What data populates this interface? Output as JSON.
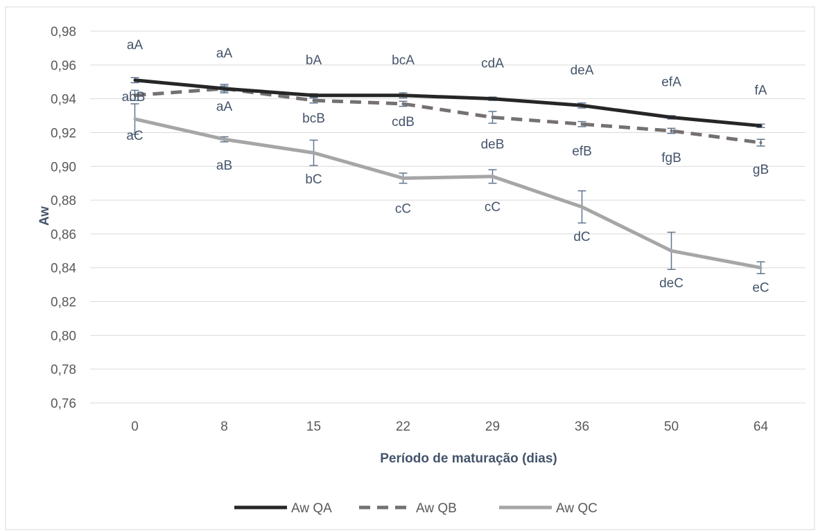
{
  "chart_data": {
    "type": "line",
    "xlabel": "Período de maturação (dias)",
    "ylabel": "Aw",
    "categories": [
      "0",
      "8",
      "15",
      "22",
      "29",
      "36",
      "50",
      "64"
    ],
    "ylim": [
      0.76,
      0.98
    ],
    "y_ticks": [
      "0,76",
      "0,78",
      "0,80",
      "0,82",
      "0,84",
      "0,86",
      "0,88",
      "0,90",
      "0,92",
      "0,94",
      "0,96",
      "0,98"
    ],
    "grid": "horizontal",
    "legend_position": "bottom",
    "series": [
      {
        "name": "Aw QA",
        "color": "#262626",
        "style": "solid",
        "values": [
          0.951,
          0.946,
          0.942,
          0.942,
          0.94,
          0.936,
          0.929,
          0.924
        ],
        "errors": [
          0.0015,
          0.0015,
          0.001,
          0.0015,
          0.001,
          0.0015,
          0.001,
          0.001
        ],
        "labels": [
          "aA",
          "aA",
          "bA",
          "bcA",
          "cdA",
          "deA",
          "efA",
          "fA"
        ]
      },
      {
        "name": "Aw QB",
        "color": "#767171",
        "style": "dashed",
        "values": [
          0.942,
          0.946,
          0.939,
          0.937,
          0.929,
          0.925,
          0.921,
          0.914
        ],
        "errors": [
          0.003,
          0.0025,
          0.0015,
          0.0015,
          0.0035,
          0.0015,
          0.0015,
          0.002
        ],
        "labels": [
          "abB",
          "aA",
          "bcB",
          "cdB",
          "deB",
          "efB",
          "fgB",
          "gB"
        ]
      },
      {
        "name": "Aw QC",
        "color": "#a6a6a6",
        "style": "solid",
        "values": [
          0.928,
          0.916,
          0.908,
          0.893,
          0.894,
          0.876,
          0.85,
          0.84
        ],
        "errors": [
          0.009,
          0.0015,
          0.0075,
          0.003,
          0.004,
          0.0095,
          0.011,
          0.0035
        ],
        "labels": [
          "aC",
          "aB",
          "bC",
          "cC",
          "cC",
          "dC",
          "deC",
          "eC"
        ]
      }
    ]
  }
}
